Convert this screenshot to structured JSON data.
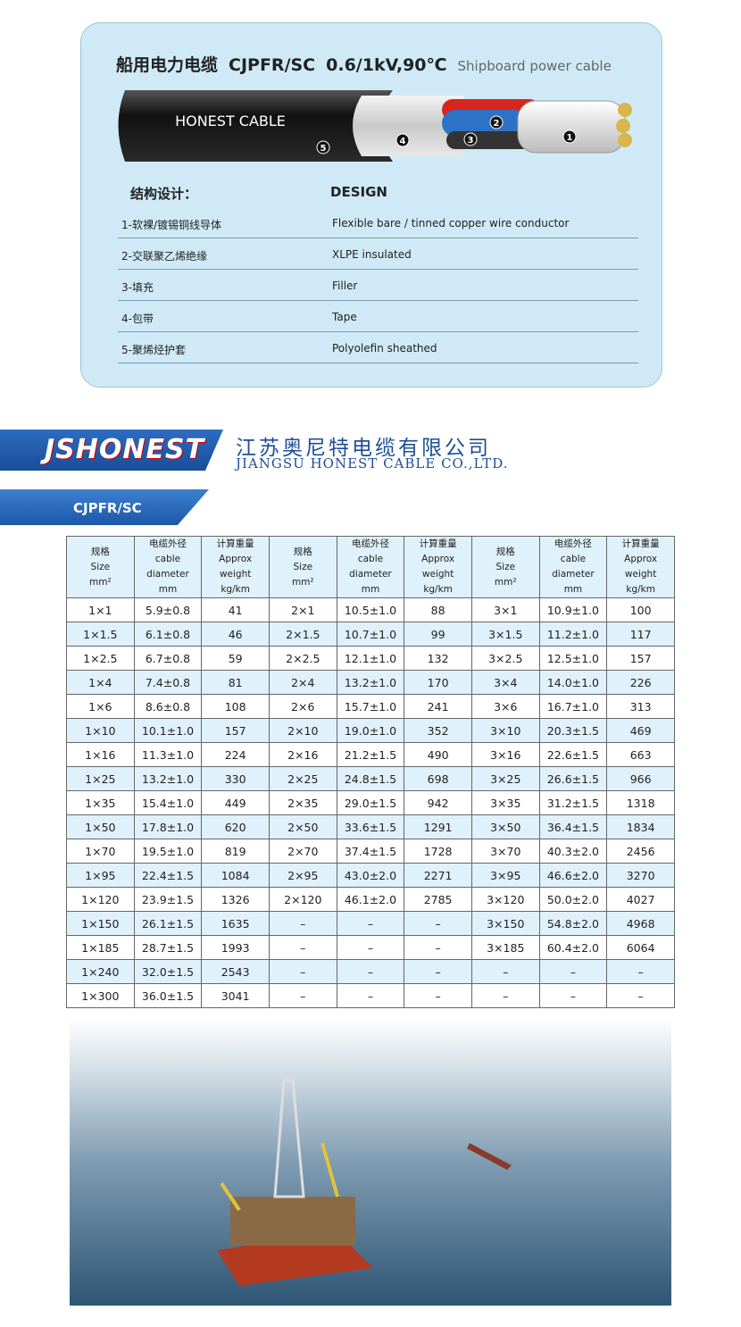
{
  "header": {
    "title_cn": "船用电力电缆",
    "model": "CJPFR/SC",
    "rating": "0.6/1kV,90℃",
    "subtitle": "Shipboard power cable"
  },
  "cable": {
    "brand": "HONEST CABLE",
    "labels": [
      "1",
      "2",
      "3",
      "4",
      "5"
    ]
  },
  "design": {
    "heading_cn": "结构设计：",
    "heading_en": "DESIGN",
    "rows": [
      [
        "1-软裸/镀锡铜线导体",
        "Flexible bare / tinned copper wire conductor"
      ],
      [
        "2-交联聚乙烯绝缘",
        "XLPE insulated"
      ],
      [
        "3-填充",
        "Filler"
      ],
      [
        "4-包带",
        "Tape"
      ],
      [
        "5-聚烯烃护套",
        "Polyolefin  sheathed"
      ]
    ]
  },
  "company": {
    "logo": "JSHONEST",
    "name_cn": "江苏奥尼特电缆有限公司",
    "name_en": "JIANGSU HONEST CABLE CO.,LTD."
  },
  "section": {
    "label": "CJPFR/SC"
  },
  "table": {
    "header": [
      [
        "规格",
        "Size",
        "mm²"
      ],
      [
        "电缆外径",
        "cable diameter",
        "mm"
      ],
      [
        "计算重量",
        "Approx weight",
        "kg/km"
      ],
      [
        "规格",
        "Size",
        "mm²"
      ],
      [
        "电缆外径",
        "cable diameter",
        "mm"
      ],
      [
        "计算重量",
        "Approx weight",
        "kg/km"
      ],
      [
        "规格",
        "Size",
        "mm²"
      ],
      [
        "电缆外径",
        "cable diameter",
        "mm"
      ],
      [
        "计算重量",
        "Approx weight",
        "kg/km"
      ]
    ],
    "rows": [
      [
        "1×1",
        "5.9±0.8",
        "41",
        "2×1",
        "10.5±1.0",
        "88",
        "3×1",
        "10.9±1.0",
        "100"
      ],
      [
        "1×1.5",
        "6.1±0.8",
        "46",
        "2×1.5",
        "10.7±1.0",
        "99",
        "3×1.5",
        "11.2±1.0",
        "117"
      ],
      [
        "1×2.5",
        "6.7±0.8",
        "59",
        "2×2.5",
        "12.1±1.0",
        "132",
        "3×2.5",
        "12.5±1.0",
        "157"
      ],
      [
        "1×4",
        "7.4±0.8",
        "81",
        "2×4",
        "13.2±1.0",
        "170",
        "3×4",
        "14.0±1.0",
        "226"
      ],
      [
        "1×6",
        "8.6±0.8",
        "108",
        "2×6",
        "15.7±1.0",
        "241",
        "3×6",
        "16.7±1.0",
        "313"
      ],
      [
        "1×10",
        "10.1±1.0",
        "157",
        "2×10",
        "19.0±1.0",
        "352",
        "3×10",
        "20.3±1.5",
        "469"
      ],
      [
        "1×16",
        "11.3±1.0",
        "224",
        "2×16",
        "21.2±1.5",
        "490",
        "3×16",
        "22.6±1.5",
        "663"
      ],
      [
        "1×25",
        "13.2±1.0",
        "330",
        "2×25",
        "24.8±1.5",
        "698",
        "3×25",
        "26.6±1.5",
        "966"
      ],
      [
        "1×35",
        "15.4±1.0",
        "449",
        "2×35",
        "29.0±1.5",
        "942",
        "3×35",
        "31.2±1.5",
        "1318"
      ],
      [
        "1×50",
        "17.8±1.0",
        "620",
        "2×50",
        "33.6±1.5",
        "1291",
        "3×50",
        "36.4±1.5",
        "1834"
      ],
      [
        "1×70",
        "19.5±1.0",
        "819",
        "2×70",
        "37.4±1.5",
        "1728",
        "3×70",
        "40.3±2.0",
        "2456"
      ],
      [
        "1×95",
        "22.4±1.5",
        "1084",
        "2×95",
        "43.0±2.0",
        "2271",
        "3×95",
        "46.6±2.0",
        "3270"
      ],
      [
        "1×120",
        "23.9±1.5",
        "1326",
        "2×120",
        "46.1±2.0",
        "2785",
        "3×120",
        "50.0±2.0",
        "4027"
      ],
      [
        "1×150",
        "26.1±1.5",
        "1635",
        "–",
        "–",
        "–",
        "3×150",
        "54.8±2.0",
        "4968"
      ],
      [
        "1×185",
        "28.7±1.5",
        "1993",
        "–",
        "–",
        "–",
        "3×185",
        "60.4±2.0",
        "6064"
      ],
      [
        "1×240",
        "32.0±1.5",
        "2543",
        "–",
        "–",
        "–",
        "–",
        "–",
        "–"
      ],
      [
        "1×300",
        "36.0±1.5",
        "3041",
        "–",
        "–",
        "–",
        "–",
        "–",
        "–"
      ]
    ]
  }
}
